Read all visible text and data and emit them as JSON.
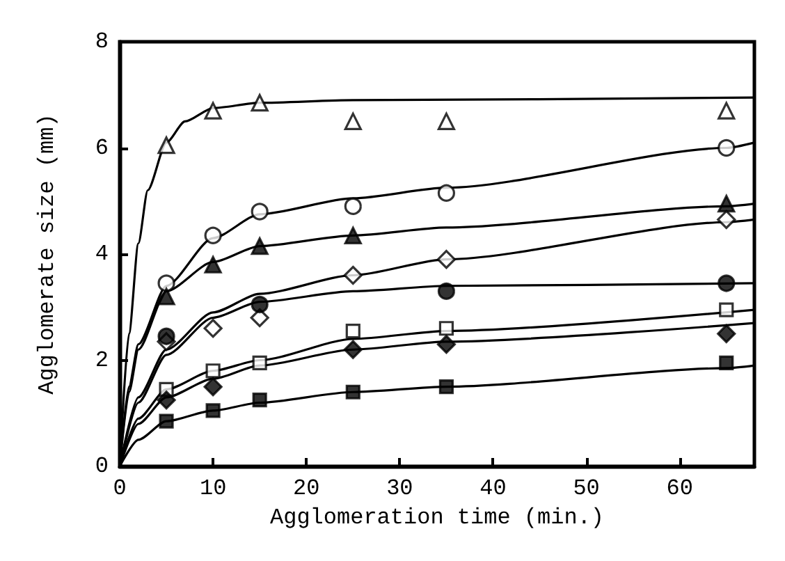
{
  "chart_data": {
    "type": "scatter",
    "xlabel": "Agglomeration time (min.)",
    "ylabel": "Agglomerate size (mm)",
    "xlim": [
      0,
      68
    ],
    "xticks": [
      0,
      10,
      20,
      30,
      40,
      50,
      60
    ],
    "ylim": [
      0,
      8
    ],
    "yticks": [
      0,
      2,
      4,
      6,
      8
    ],
    "grid": false,
    "x": [
      5,
      10,
      15,
      25,
      35,
      65
    ],
    "series": [
      {
        "color": "#ffffff",
        "marker": "triangle",
        "values": [
          6.05,
          6.7,
          6.85,
          6.5,
          6.5,
          6.7
        ]
      },
      {
        "color": "#ffffff",
        "marker": "circle",
        "values": [
          3.45,
          4.35,
          4.8,
          4.9,
          5.15,
          6.0
        ]
      },
      {
        "color": "#000000",
        "marker": "triangle",
        "values": [
          3.2,
          3.8,
          4.15,
          4.35,
          null,
          4.95
        ]
      },
      {
        "color": "#ffffff",
        "marker": "diamond",
        "values": [
          2.35,
          2.6,
          2.8,
          3.6,
          3.9,
          4.65
        ]
      },
      {
        "color": "#000000",
        "marker": "circle",
        "values": [
          2.45,
          null,
          3.05,
          null,
          3.3,
          3.45
        ]
      },
      {
        "color": "#ffffff",
        "marker": "square",
        "values": [
          1.45,
          1.8,
          1.95,
          2.55,
          2.6,
          2.95
        ]
      },
      {
        "color": "#000000",
        "marker": "diamond",
        "values": [
          1.25,
          1.5,
          null,
          2.2,
          2.3,
          2.5
        ]
      },
      {
        "color": "#000000",
        "marker": "square",
        "values": [
          0.85,
          1.05,
          1.25,
          1.4,
          1.5,
          1.95
        ]
      },
      {
        "type": "line",
        "color": "#000000",
        "marker": "none",
        "x": [
          0,
          1,
          2,
          3,
          5,
          7,
          10,
          15,
          25,
          68
        ],
        "values": [
          0,
          2.5,
          4.2,
          5.2,
          6.1,
          6.5,
          6.75,
          6.85,
          6.9,
          6.95
        ]
      },
      {
        "type": "line",
        "color": "#000000",
        "marker": "none",
        "x": [
          0,
          1,
          2,
          5,
          10,
          15,
          25,
          35,
          65,
          68
        ],
        "values": [
          0,
          1.5,
          2.3,
          3.4,
          4.3,
          4.75,
          5.05,
          5.25,
          6.0,
          6.1
        ]
      },
      {
        "type": "line",
        "color": "#000000",
        "marker": "none",
        "x": [
          0,
          1,
          2,
          5,
          10,
          15,
          25,
          35,
          65,
          68
        ],
        "values": [
          0,
          1.4,
          2.2,
          3.3,
          3.85,
          4.15,
          4.35,
          4.5,
          4.9,
          4.95
        ]
      },
      {
        "type": "line",
        "color": "#000000",
        "marker": "none",
        "x": [
          0,
          2,
          5,
          10,
          15,
          25,
          35,
          65,
          68
        ],
        "values": [
          0,
          1.3,
          2.2,
          2.9,
          3.25,
          3.6,
          3.9,
          4.6,
          4.65
        ]
      },
      {
        "type": "line",
        "color": "#000000",
        "marker": "none",
        "x": [
          0,
          2,
          5,
          10,
          15,
          25,
          35,
          68
        ],
        "values": [
          0,
          1.2,
          2.1,
          2.8,
          3.1,
          3.3,
          3.4,
          3.45
        ]
      },
      {
        "type": "line",
        "color": "#000000",
        "marker": "none",
        "x": [
          0,
          2,
          5,
          10,
          15,
          25,
          35,
          68
        ],
        "values": [
          0,
          0.9,
          1.45,
          1.8,
          2.0,
          2.4,
          2.55,
          2.95
        ]
      },
      {
        "type": "line",
        "color": "#000000",
        "marker": "none",
        "x": [
          0,
          2,
          5,
          10,
          15,
          25,
          35,
          68
        ],
        "values": [
          0,
          0.8,
          1.3,
          1.65,
          1.9,
          2.2,
          2.35,
          2.7
        ]
      },
      {
        "type": "line",
        "color": "#000000",
        "marker": "none",
        "x": [
          0,
          2,
          5,
          10,
          15,
          25,
          35,
          65,
          68
        ],
        "values": [
          0,
          0.5,
          0.85,
          1.05,
          1.2,
          1.4,
          1.5,
          1.85,
          1.9
        ]
      }
    ]
  }
}
